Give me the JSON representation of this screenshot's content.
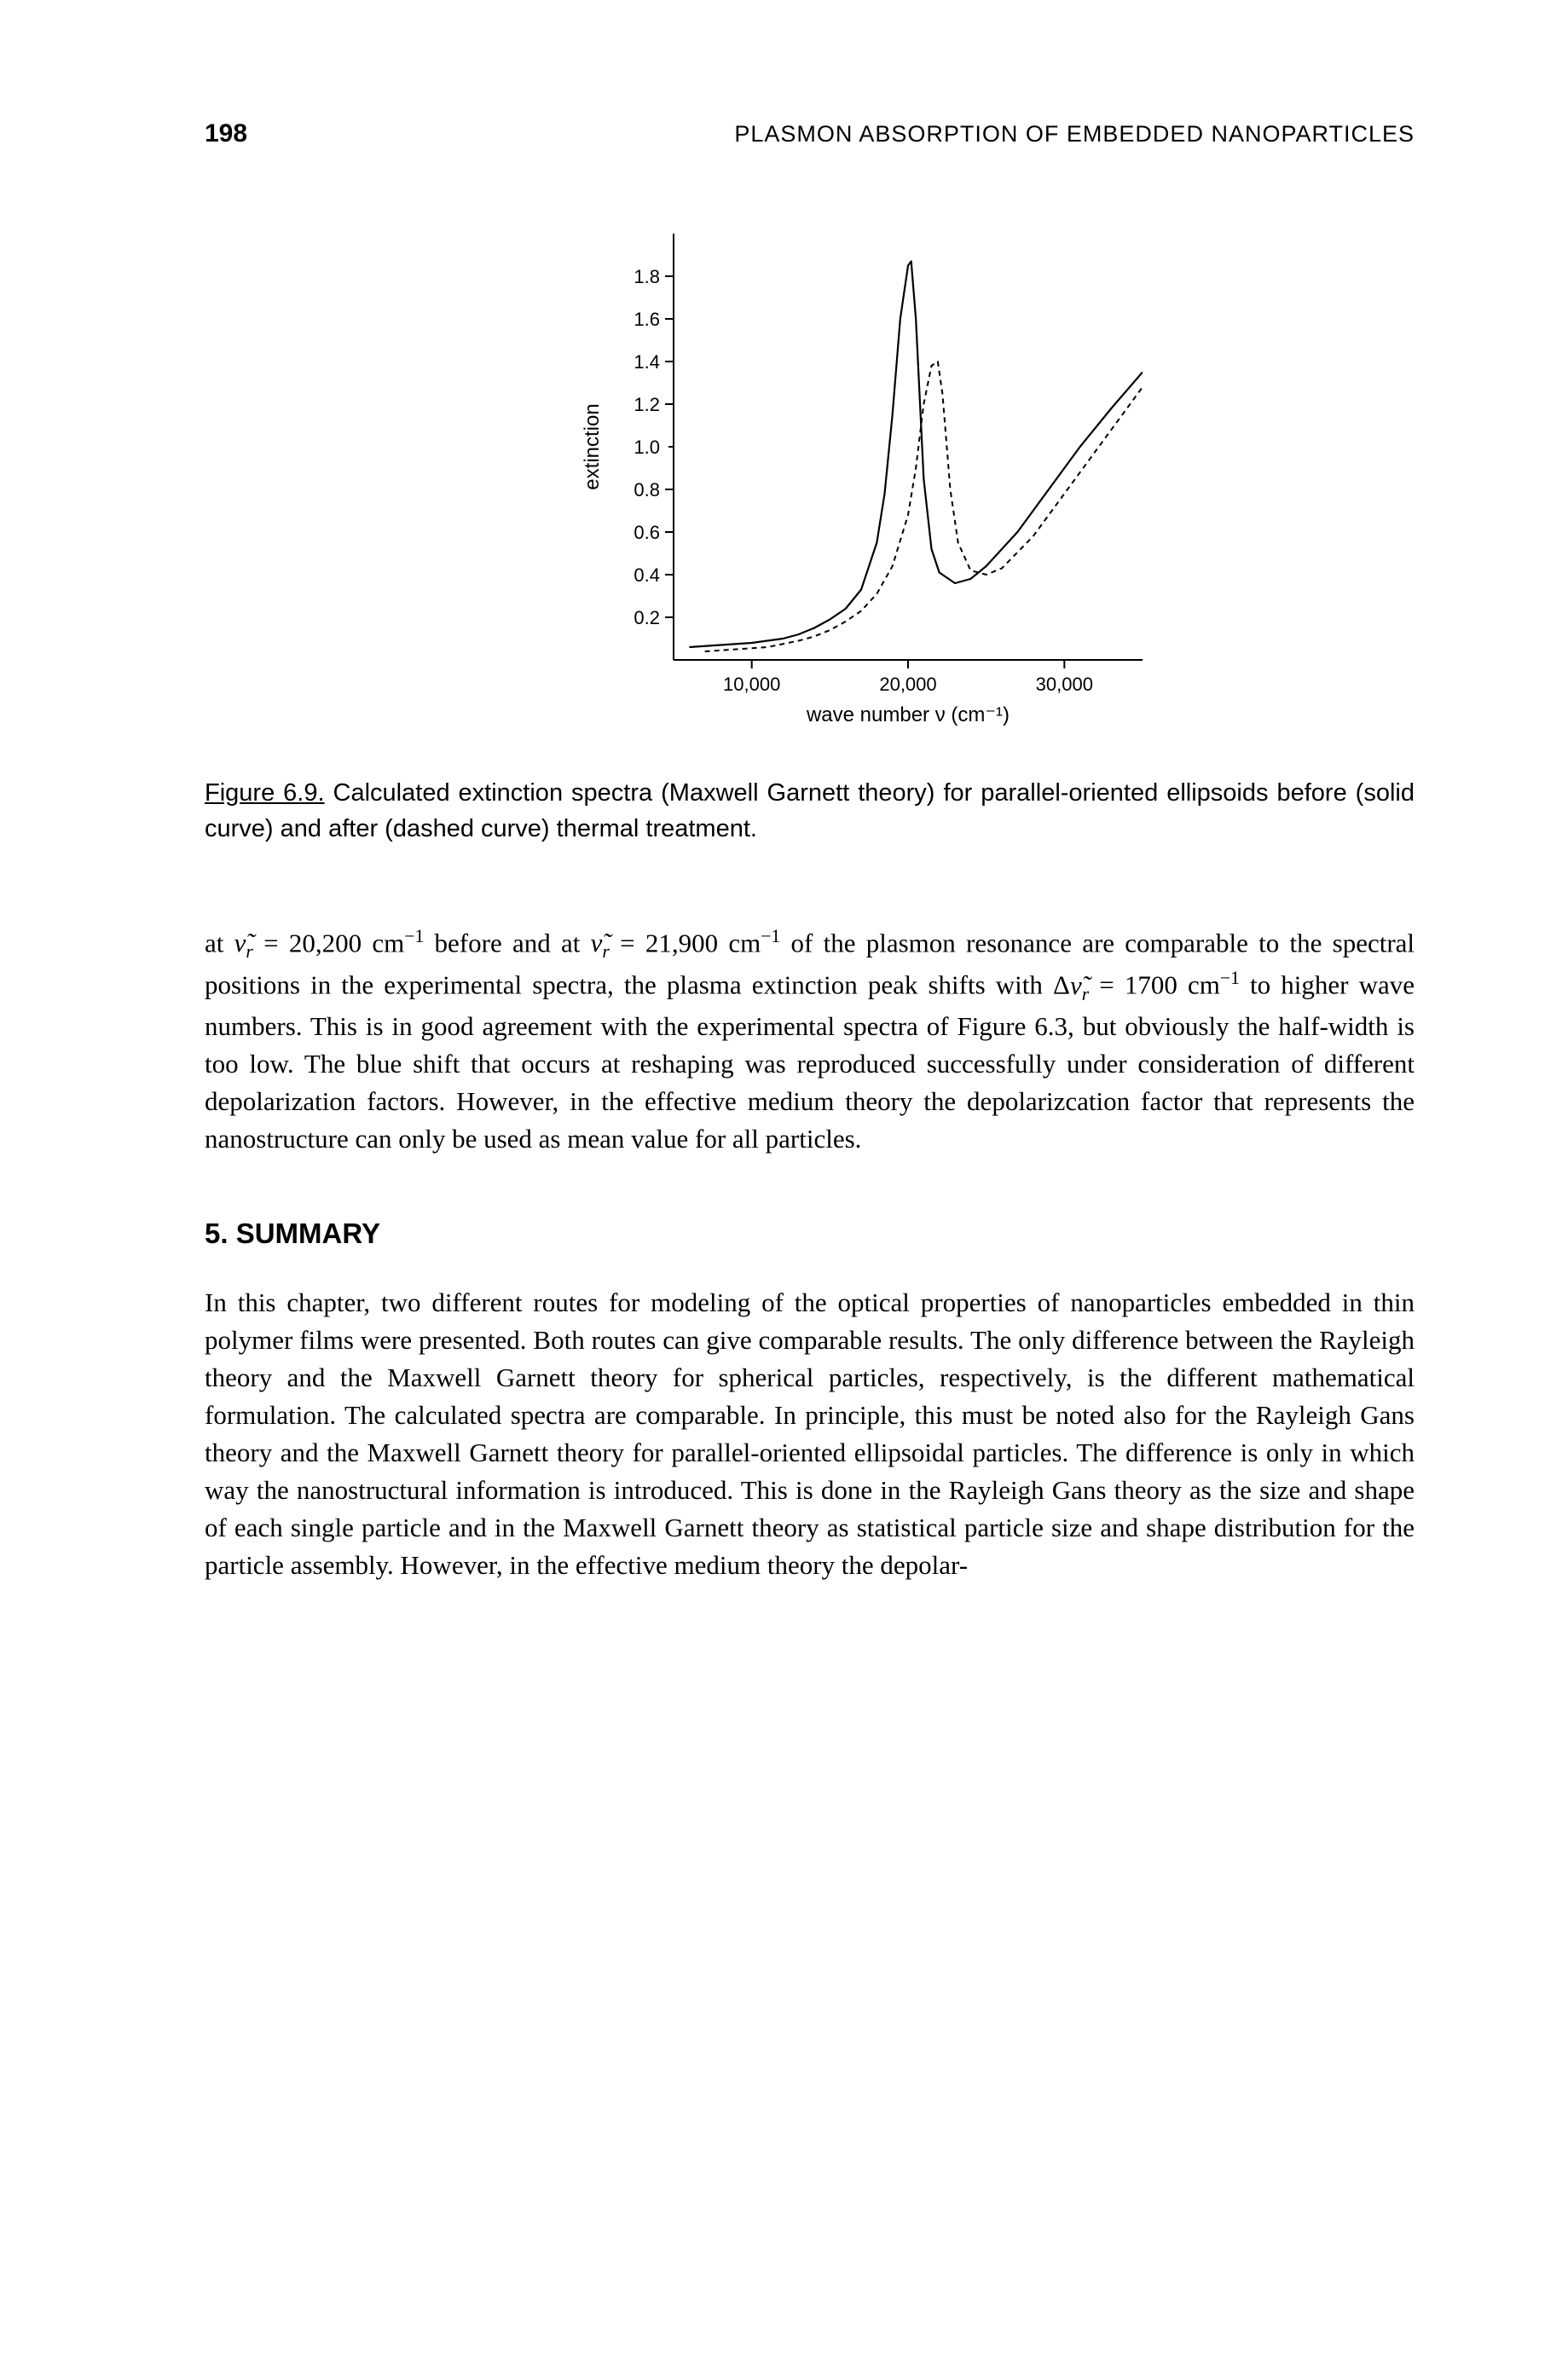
{
  "header": {
    "page_number": "198",
    "running_head": "PLASMON ABSORPTION OF EMBEDDED NANOPARTICLES"
  },
  "figure": {
    "type": "line",
    "label": "Figure 6.9.",
    "caption_rest": " Calculated extinction spectra (Maxwell Garnett theory) for parallel-oriented ellipsoids before (solid curve) and after (dashed curve) thermal treatment.",
    "x_label": "wave number ν (cm⁻¹)",
    "y_label": "extinction",
    "xlim": [
      5000,
      35000
    ],
    "ylim": [
      0,
      2.0
    ],
    "xticks": [
      10000,
      20000,
      30000
    ],
    "xtick_labels": [
      "10,000",
      "20,000",
      "30,000"
    ],
    "yticks": [
      0.2,
      0.4,
      0.6,
      0.8,
      1.0,
      1.2,
      1.4,
      1.6,
      1.8
    ],
    "ytick_labels": [
      "0.2",
      "0.4",
      "0.6",
      "0.8",
      "1.0",
      "1.2",
      "1.4",
      "1.6",
      "1.8"
    ],
    "ytick_short": [
      1.0
    ],
    "axis_color": "#000000",
    "line_color": "#000000",
    "background_color": "#ffffff",
    "line_width_solid": 2.2,
    "line_width_dashed": 2.0,
    "dash_pattern": "6,5",
    "tick_fontsize": 22,
    "label_fontsize": 24,
    "series_solid": {
      "x": [
        6000,
        8000,
        10000,
        12000,
        13000,
        14000,
        15000,
        16000,
        17000,
        18000,
        18500,
        19000,
        19500,
        20000,
        20200,
        20500,
        21000,
        21500,
        22000,
        23000,
        24000,
        25000,
        27000,
        29000,
        31000,
        33000,
        35000
      ],
      "y": [
        0.06,
        0.07,
        0.08,
        0.1,
        0.12,
        0.15,
        0.19,
        0.24,
        0.33,
        0.55,
        0.78,
        1.15,
        1.6,
        1.85,
        1.87,
        1.6,
        0.85,
        0.52,
        0.41,
        0.36,
        0.38,
        0.44,
        0.6,
        0.8,
        1.0,
        1.18,
        1.35
      ]
    },
    "series_dashed": {
      "x": [
        7000,
        9000,
        11000,
        13000,
        14000,
        15000,
        16000,
        17000,
        18000,
        19000,
        20000,
        20500,
        21000,
        21500,
        21900,
        22200,
        22700,
        23200,
        24000,
        25000,
        26000,
        28000,
        30000,
        32000,
        34000,
        35000
      ],
      "y": [
        0.04,
        0.05,
        0.06,
        0.09,
        0.11,
        0.14,
        0.18,
        0.23,
        0.31,
        0.44,
        0.68,
        0.9,
        1.2,
        1.38,
        1.4,
        1.25,
        0.8,
        0.55,
        0.42,
        0.4,
        0.43,
        0.58,
        0.78,
        0.98,
        1.18,
        1.28
      ]
    }
  },
  "paragraphs": {
    "body1_html": "at <span class=\"math\">ν̃<span class=\"sub\">r</span></span> = 20,200 cm<span class=\"sup\">−1</span> before and at <span class=\"math\">ν̃<span class=\"sub\">r</span></span> = 21,900 cm<span class=\"sup\">−1</span> of the plasmon resonance are comparable to the spectral positions in the experimental spectra, the plasma extinction peak shifts with Δ<span class=\"math\">ν̃<span class=\"sub\">r</span></span> = 1700 cm<span class=\"sup\">−1</span> to higher wave numbers. This is in good agreement with the experimental spectra of Figure 6.3, but obviously the half-width is too low. The blue shift that occurs at reshaping was reproduced successfully under consideration of different depolarization factors. However, in the effective medium theory the depolarizcation factor that represents the nanostructure can only be used as mean value for all particles.",
    "section_heading": "5.  SUMMARY",
    "summary1": "In this chapter, two different routes for modeling of the optical properties of nanoparticles embedded in thin polymer films were presented. Both routes can give comparable results. The only difference between the Rayleigh theory and the Maxwell Garnett theory for spherical particles, respectively, is the different mathematical formulation. The calculated spectra are comparable. In principle, this must be noted also for the Rayleigh Gans theory and the Maxwell Garnett theory for parallel-oriented ellipsoidal particles. The difference is only in which way the nanostructural information is introduced. This is done in the Rayleigh Gans theory as the size and shape of each single particle and in the Maxwell Garnett theory as statistical particle size and shape distribution for the particle assembly. However, in the effective medium theory the depolar-"
  }
}
